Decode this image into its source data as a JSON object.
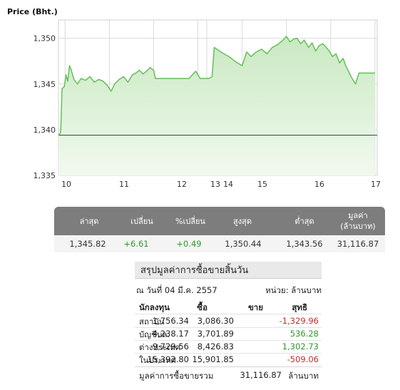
{
  "chart_data": {
    "type": "area",
    "title": "Price (Bht.)",
    "xlabel": "",
    "ylabel": "Price (Bht.)",
    "x_ticks": [
      "10",
      "11",
      "12",
      "13",
      "14",
      "15",
      "16",
      "17"
    ],
    "x_tick_values": [
      10,
      11,
      12,
      13,
      13.25,
      14,
      15,
      16,
      17
    ],
    "y_ticks": [
      "1,335",
      "1,340",
      "1,345",
      "1,350"
    ],
    "ylim": [
      1335,
      1352
    ],
    "xlim": [
      9.85,
      17.05
    ],
    "reference_line": 1339.4,
    "grid": true,
    "series": [
      {
        "name": "",
        "x": [
          9.85,
          9.9,
          9.93,
          9.98,
          10.02,
          10.06,
          10.1,
          10.14,
          10.2,
          10.28,
          10.36,
          10.46,
          10.56,
          10.66,
          10.76,
          10.86,
          10.96,
          11.04,
          11.12,
          11.22,
          11.32,
          11.42,
          11.52,
          11.6,
          11.68,
          11.76,
          11.84,
          11.92,
          12.0,
          12.04,
          12.2,
          12.5,
          12.8,
          12.95,
          13.05,
          13.25,
          13.32,
          13.37,
          13.52,
          13.7,
          13.86,
          14.0,
          14.1,
          14.2,
          14.32,
          14.44,
          14.56,
          14.68,
          14.8,
          14.9,
          15.0,
          15.08,
          15.16,
          15.24,
          15.32,
          15.4,
          15.5,
          15.58,
          15.66,
          15.74,
          15.82,
          15.9,
          15.98,
          16.04,
          16.12,
          16.2,
          16.28,
          16.34,
          16.46,
          16.56,
          16.64,
          16.8,
          17.0
        ],
        "y": [
          1339.4,
          1339.7,
          1344.5,
          1344.7,
          1346.0,
          1345.3,
          1347.0,
          1346.5,
          1345.5,
          1345.0,
          1345.6,
          1345.4,
          1345.8,
          1345.2,
          1345.5,
          1345.3,
          1344.8,
          1344.2,
          1345.0,
          1345.5,
          1345.8,
          1345.2,
          1346.0,
          1346.2,
          1346.5,
          1346.1,
          1346.4,
          1346.8,
          1346.5,
          1345.6,
          1345.6,
          1345.6,
          1345.6,
          1346.4,
          1345.6,
          1345.6,
          1345.8,
          1349.0,
          1348.5,
          1348.0,
          1347.4,
          1347.0,
          1348.5,
          1348.0,
          1348.5,
          1348.8,
          1348.3,
          1349.0,
          1349.3,
          1349.7,
          1350.2,
          1349.6,
          1349.9,
          1350.0,
          1349.4,
          1349.8,
          1349.0,
          1349.5,
          1348.6,
          1349.2,
          1349.4,
          1349.0,
          1348.5,
          1348.0,
          1348.3,
          1347.3,
          1347.8,
          1347.0,
          1345.8,
          1345.0,
          1346.2,
          1346.2,
          1346.2
        ]
      }
    ]
  },
  "stats": {
    "headers": [
      "ล่าสุด",
      "เปลี่ยน",
      "%เปลี่ยน",
      "สูงสุด",
      "ต่ำสุด",
      "มูลค่า\n(ล้านบาท)"
    ],
    "values": [
      "1,345.82",
      "+6.61",
      "+0.49",
      "1,350.44",
      "1,343.56",
      "31,116.87"
    ]
  },
  "summary": {
    "title": "สรุปมูลค่าการซื้อขายสิ้นวัน",
    "date": "ณ วันที่ 04 มี.ค. 2557",
    "unit": "หน่วย: ล้านบาท",
    "columns": [
      "นักลงทุน",
      "ซื้อ",
      "ขาย",
      "สุทธิ"
    ],
    "rows": [
      {
        "investor": "สถาบัน",
        "buy": "1,756.34",
        "sell": "3,086.30",
        "net": "-1,329.96"
      },
      {
        "investor": "บัญชีบล.",
        "buy": "4,238.17",
        "sell": "3,701.89",
        "net": "536.28"
      },
      {
        "investor": "ต่างประเทศ",
        "buy": "9,729.56",
        "sell": "8,426.83",
        "net": "1,302.73"
      },
      {
        "investor": "ในประเทศ",
        "buy": "15,392.80",
        "sell": "15,901.85",
        "net": "-509.06"
      }
    ],
    "total_label": "มูลค่าการซื้อขายรวม",
    "total_value": "31,116.87",
    "total_unit": "ล้านบาท"
  },
  "colors": {
    "line": "#6cc160",
    "fill_top": "#c9e9c1",
    "fill_bottom": "#f1f9ef",
    "reference": "#3c5a3c",
    "positive": "#2d9a2d",
    "negative": "#cc2a2a",
    "header_bg": "#7d7d7d"
  }
}
